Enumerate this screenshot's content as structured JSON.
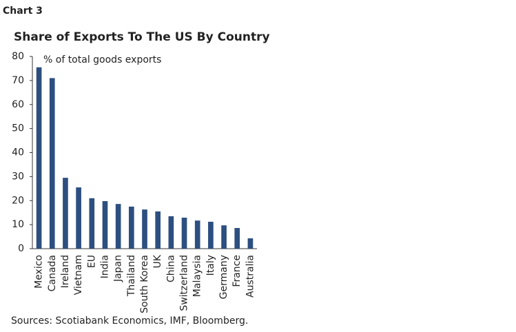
{
  "chart_data": {
    "type": "bar",
    "label": "Chart 3",
    "title": "Share of Exports To The US By Country",
    "y_label": "% of total goods exports",
    "source": "Sources: Scotiabank Economics, IMF, Bloomberg.",
    "categories": [
      "Mexico",
      "Canada",
      "Ireland",
      "Vietnam",
      "EU",
      "India",
      "Japan",
      "Thailand",
      "South Korea",
      "UK",
      "China",
      "Switzerland",
      "Malaysia",
      "Italy",
      "Germany",
      "France",
      "Australia"
    ],
    "values": [
      75.5,
      71,
      29.5,
      25.5,
      21,
      19.8,
      18.6,
      17.5,
      16.3,
      15.5,
      13.5,
      12.9,
      11.7,
      11.2,
      9.7,
      8.6,
      4.3
    ],
    "color": "#2d4f80",
    "ylim": [
      0,
      80
    ],
    "yticks": [
      0,
      10,
      20,
      30,
      40,
      50,
      60,
      70,
      80
    ],
    "grid": false
  }
}
